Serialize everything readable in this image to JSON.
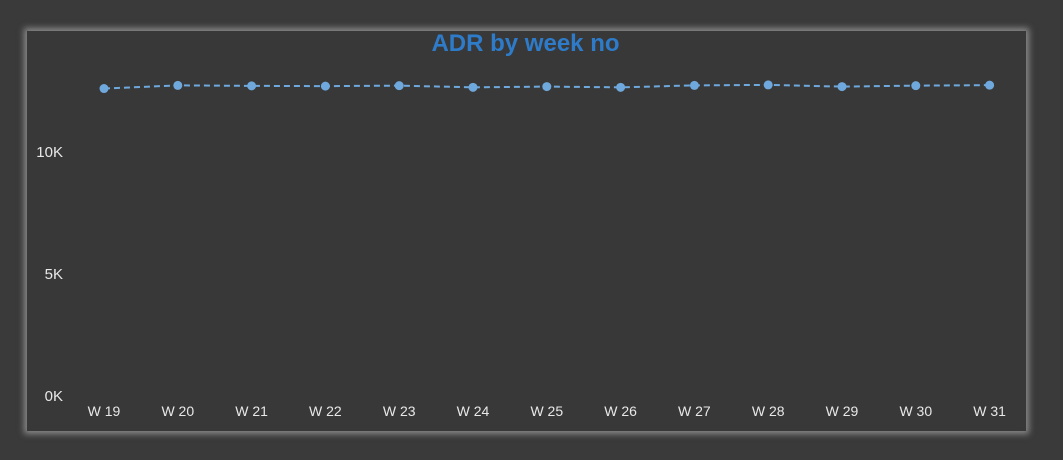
{
  "chart_data": {
    "type": "line",
    "title": "ADR by week no",
    "xlabel": "",
    "ylabel": "",
    "categories": [
      "W 19",
      "W 20",
      "W 21",
      "W 22",
      "W 23",
      "W 24",
      "W 25",
      "W 26",
      "W 27",
      "W 28",
      "W 29",
      "W 30",
      "W 31"
    ],
    "series": [
      {
        "values": [
          12600,
          12730,
          12710,
          12700,
          12720,
          12650,
          12680,
          12650,
          12730,
          12750,
          12680,
          12720,
          12740
        ]
      }
    ],
    "y_ticks": [
      "0K",
      "5K",
      "10K"
    ],
    "ylim": [
      0,
      13000
    ],
    "grid": false,
    "line_style": "dashed",
    "colors": {
      "title": "#2e7bc9",
      "series": "#6fa8dc",
      "background": "#383838",
      "text": "#e8e8e8"
    }
  }
}
